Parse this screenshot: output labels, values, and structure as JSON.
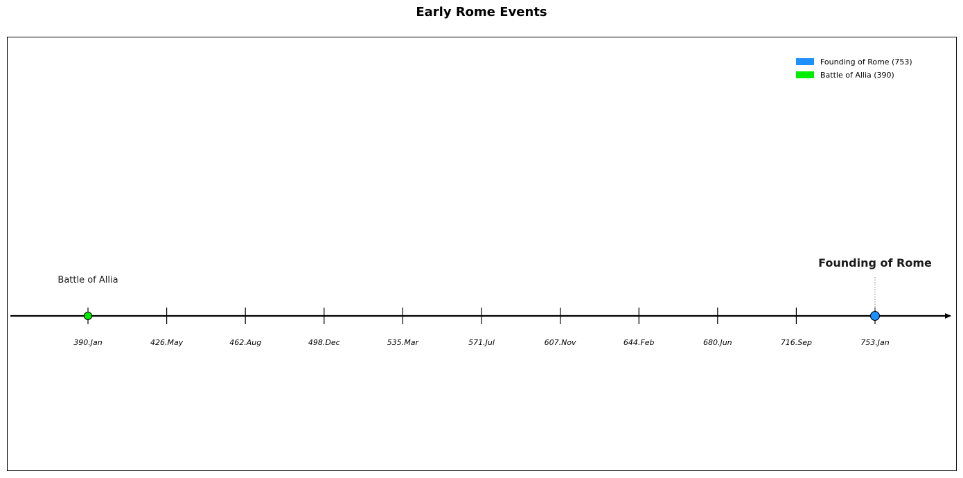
{
  "chart_data": {
    "type": "timeline",
    "title": "Early Rome Events",
    "axis": {
      "tick_labels": [
        "390.Jan",
        "426.May",
        "462.Aug",
        "498.Dec",
        "535.Mar",
        "571.Jul",
        "607.Nov",
        "644.Feb",
        "680.Jun",
        "716.Sep",
        "753.Jan"
      ],
      "range": [
        390,
        753
      ]
    },
    "events": [
      {
        "label": "Battle of Allia",
        "year": 390,
        "color": "#00ee00",
        "emphasis": "normal"
      },
      {
        "label": "Founding of Rome",
        "year": 753,
        "color": "#1e90ff",
        "emphasis": "bold"
      }
    ],
    "legend": {
      "placement": "top-right",
      "entries": [
        {
          "label": "Founding of Rome (753)",
          "color": "#1e90ff"
        },
        {
          "label": "Battle of Allia (390)",
          "color": "#00ee00"
        }
      ]
    }
  }
}
